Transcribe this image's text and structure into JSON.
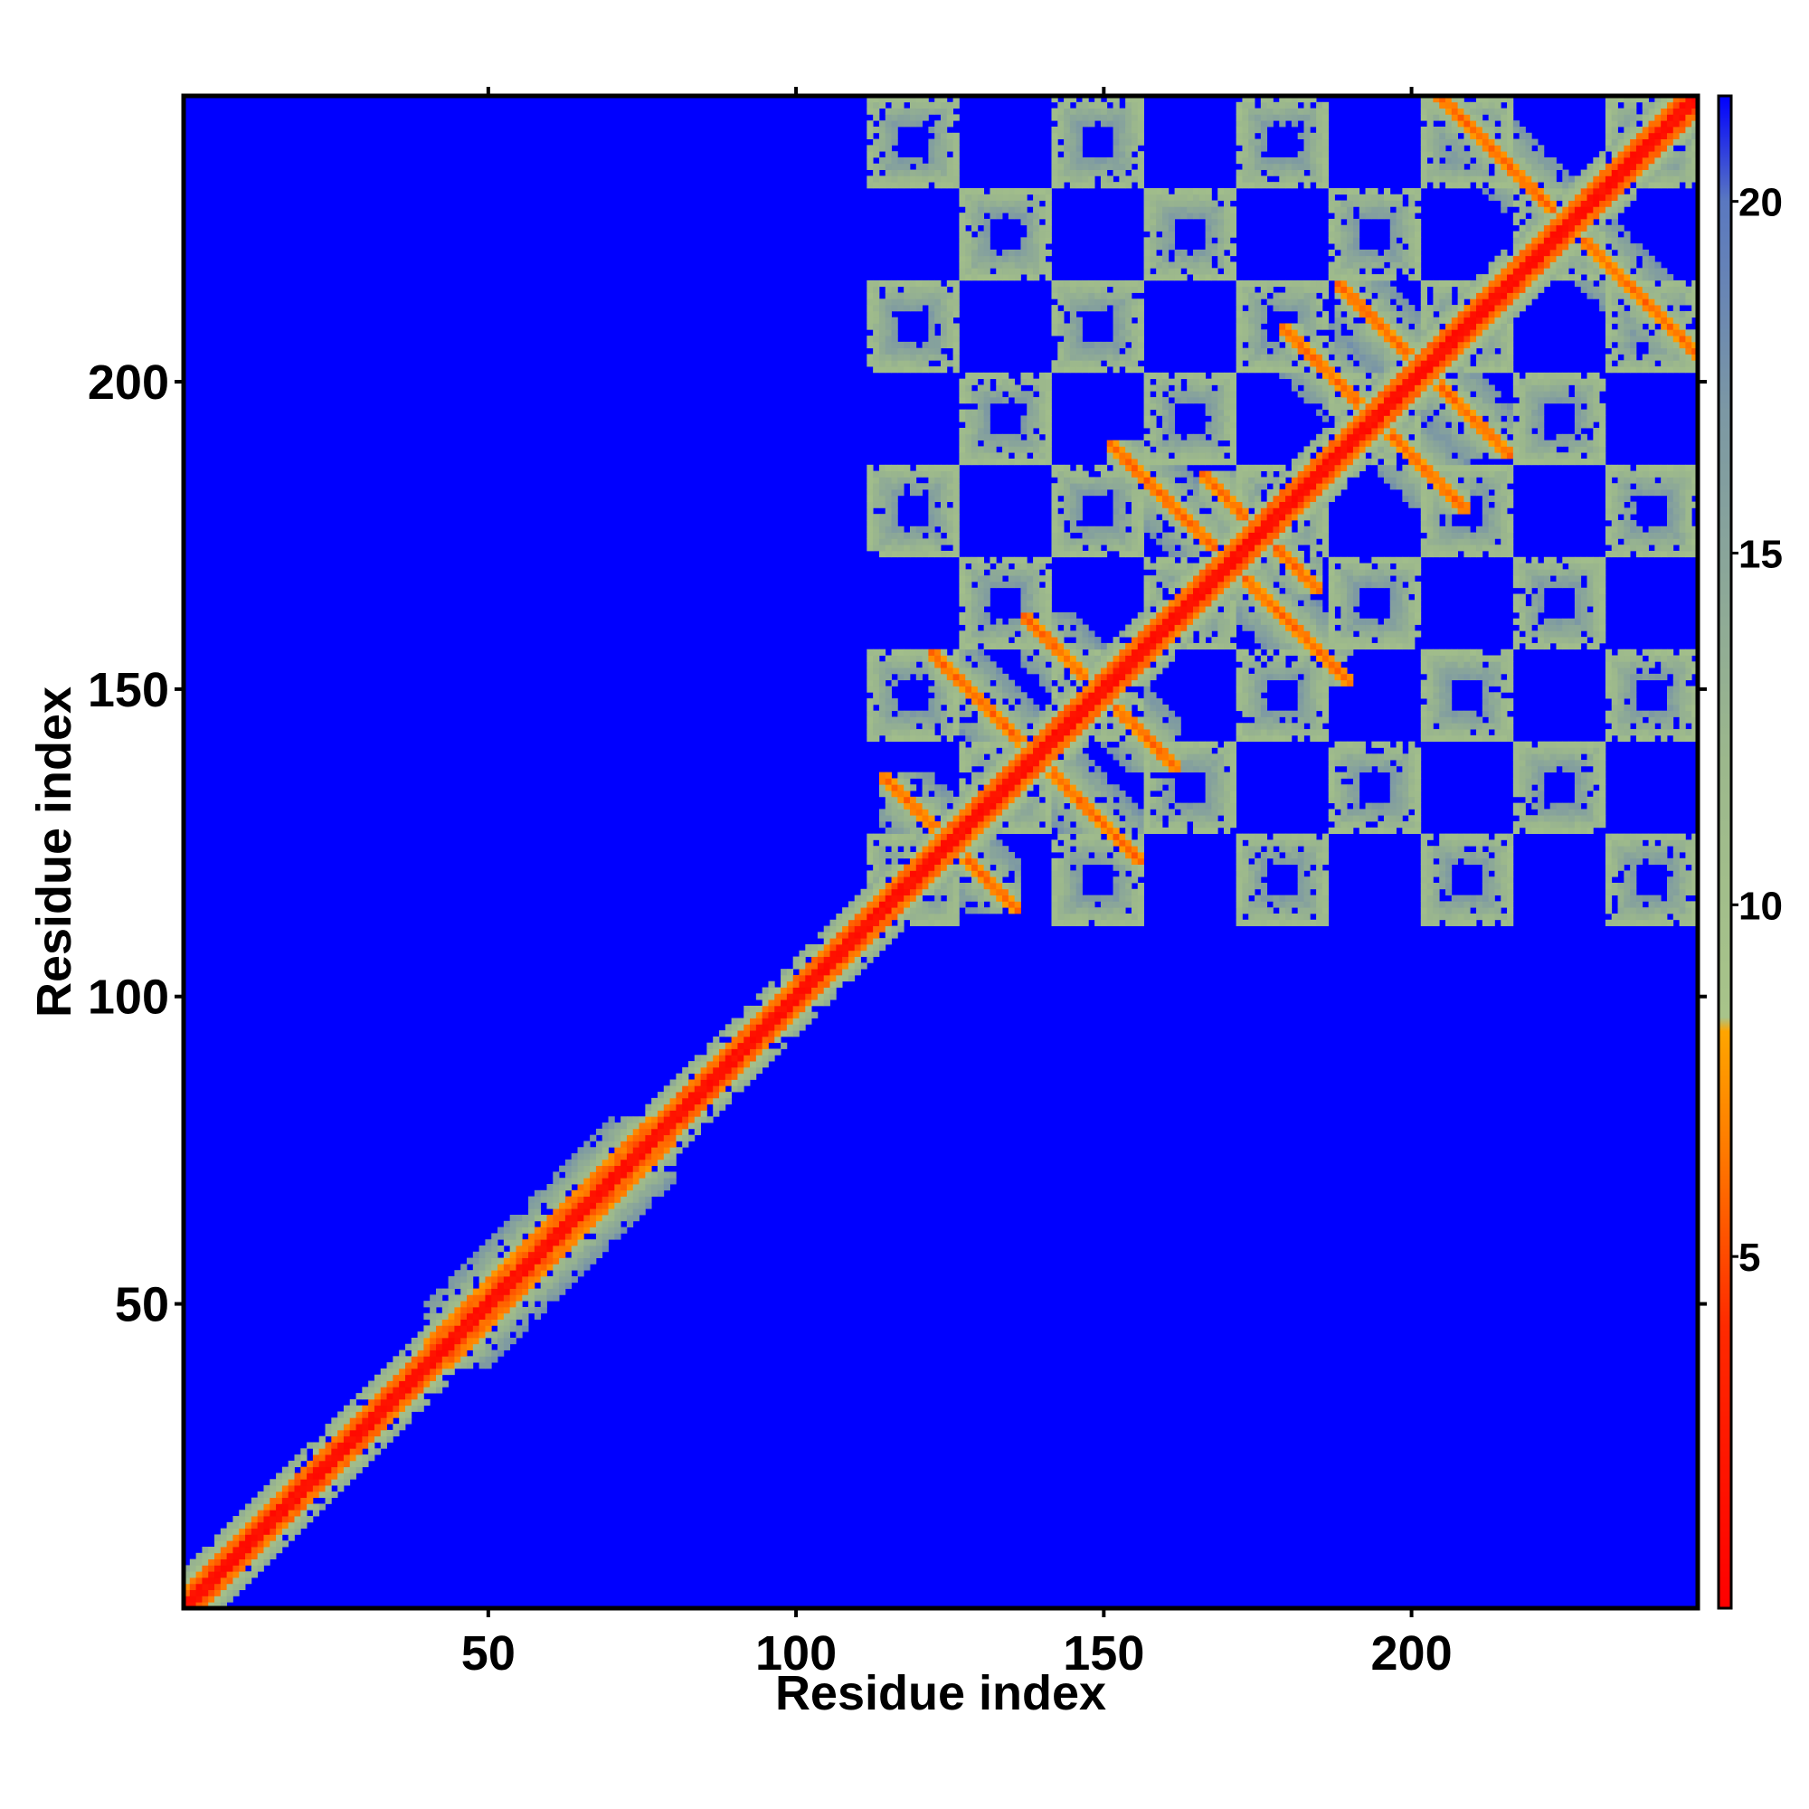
{
  "chart_data": {
    "type": "heatmap",
    "title": "",
    "xlabel": "Residue index",
    "ylabel": "Residue index",
    "xlim": [
      1,
      246
    ],
    "ylim": [
      1,
      246
    ],
    "x_ticks": [
      50,
      100,
      150,
      200
    ],
    "y_ticks": [
      50,
      100,
      150,
      200
    ],
    "colorbar": {
      "ticks": [
        5,
        10,
        15,
        20
      ],
      "range": [
        0,
        21.5
      ],
      "stops": [
        {
          "value": 0.0,
          "color": "#ff0000"
        },
        {
          "value": 4.0,
          "color": "#ff2a00"
        },
        {
          "value": 6.5,
          "color": "#ff7a00"
        },
        {
          "value": 8.2,
          "color": "#ffa500"
        },
        {
          "value": 8.4,
          "color": "#a8c48a"
        },
        {
          "value": 12.0,
          "color": "#9cb88c"
        },
        {
          "value": 17.0,
          "color": "#7c98a4"
        },
        {
          "value": 20.0,
          "color": "#5a78c0"
        },
        {
          "value": 21.5,
          "color": "#0000ff"
        }
      ]
    },
    "background_color": "#0000ff",
    "diagonal_color": "#ff0000",
    "contact_features": {
      "diagonal_band_width_residues": 5,
      "n_terminal_region": [
        1,
        110
      ],
      "beta_sheet_domain": [
        112,
        246
      ],
      "antiparallel_strand_pairs": [
        [
          118,
          132
        ],
        [
          126,
          152
        ],
        [
          141,
          158
        ],
        [
          155,
          186
        ],
        [
          170,
          181
        ],
        [
          183,
          205
        ],
        [
          192,
          212
        ],
        [
          207,
          244
        ]
      ]
    }
  }
}
